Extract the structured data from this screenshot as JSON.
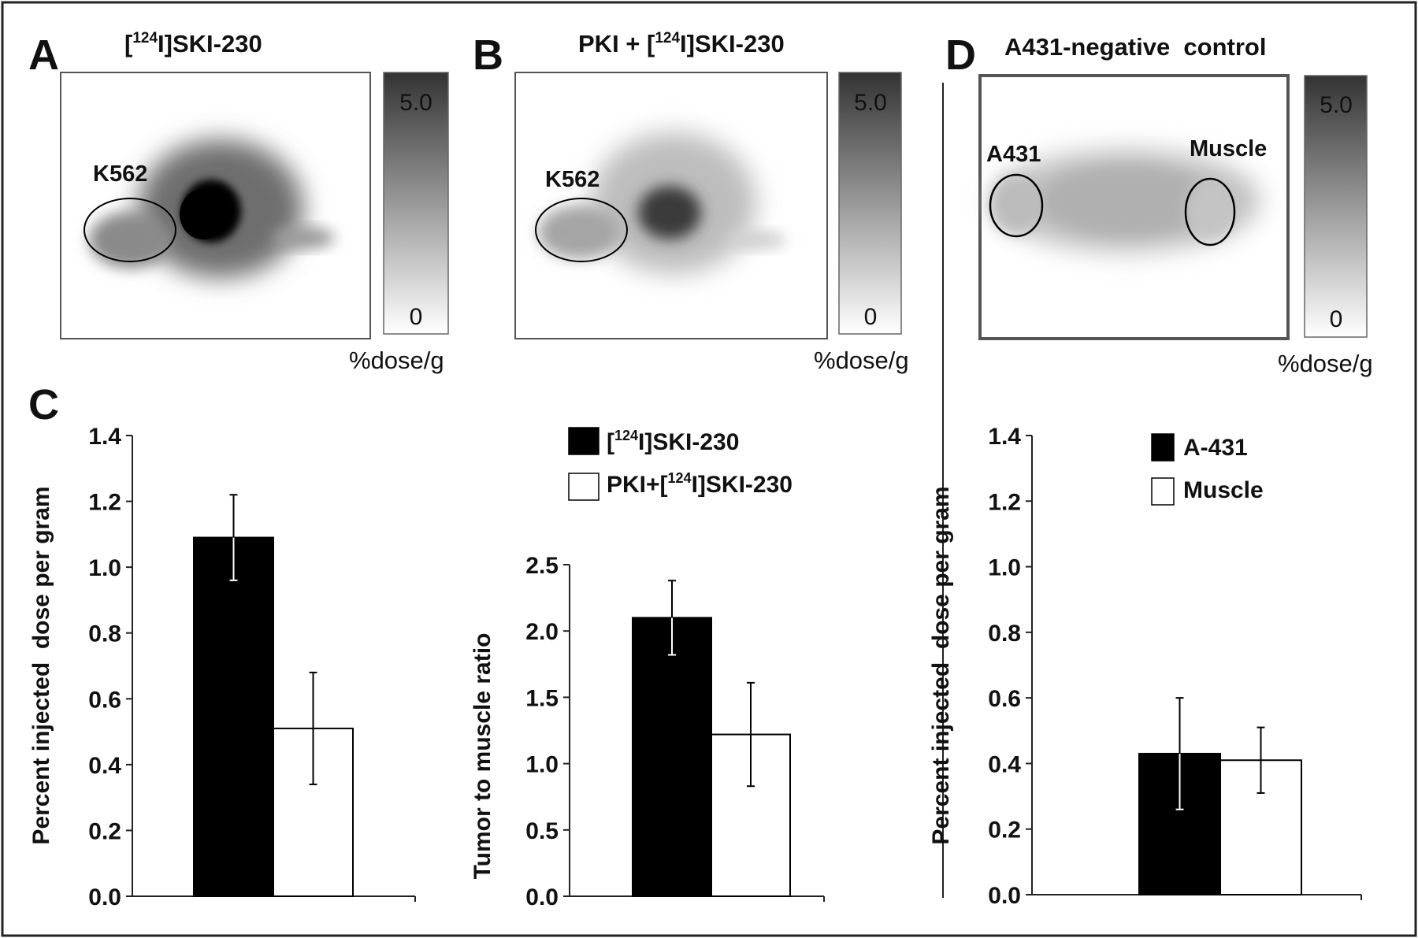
{
  "panels": {
    "a": {
      "letter": "A",
      "title_prefix": "[",
      "title_sup": "124",
      "title_suffix": "I]SKI-230",
      "roi_label": "K562",
      "scale_max": "5.0",
      "scale_min": "0",
      "scale_unit": "%dose/g"
    },
    "b": {
      "letter": "B",
      "title_prefix": "PKI + [",
      "title_sup": "124",
      "title_suffix": "I]SKI-230",
      "roi_label": "K562",
      "scale_max": "5.0",
      "scale_min": "0",
      "scale_unit": "%dose/g"
    },
    "c": {
      "letter": "C"
    },
    "d": {
      "letter": "D",
      "title": "A431-negative  control",
      "roi_left_label": "A431",
      "roi_right_label": "Muscle",
      "scale_max": "5.0",
      "scale_min": "0",
      "scale_unit": "%dose/g"
    }
  },
  "legends": {
    "c": [
      {
        "prefix": "[",
        "sup": "124",
        "suffix": "I]SKI-230",
        "color": "#000000"
      },
      {
        "prefix": "PKI+[",
        "sup": "124",
        "suffix": "I]SKI-230",
        "color": "#ffffff"
      }
    ],
    "d": [
      {
        "prefix": "A-431",
        "sup": "",
        "suffix": "",
        "color": "#000000"
      },
      {
        "prefix": "Muscle",
        "sup": "",
        "suffix": "",
        "color": "#ffffff"
      }
    ]
  },
  "chart_data": [
    {
      "id": "c1",
      "type": "bar",
      "ylabel": "Percent injected  dose per gram",
      "ylim": [
        0,
        1.4
      ],
      "yticks": [
        "0.0",
        "0.2",
        "0.4",
        "0.6",
        "0.8",
        "1.0",
        "1.2",
        "1.4"
      ],
      "grid": false,
      "series": [
        {
          "name": "[124I]SKI-230",
          "color": "#000000",
          "values": [
            1.09
          ],
          "errors": [
            0.13
          ]
        },
        {
          "name": "PKI+[124I]SKI-230",
          "color": "#ffffff",
          "values": [
            0.51
          ],
          "errors": [
            0.17
          ]
        }
      ]
    },
    {
      "id": "c2",
      "type": "bar",
      "ylabel": "Tumor to muscle ratio",
      "ylim": [
        0,
        2.5
      ],
      "yticks": [
        "0.0",
        "0.5",
        "1.0",
        "1.5",
        "2.0",
        "2.5"
      ],
      "grid": false,
      "series": [
        {
          "name": "[124I]SKI-230",
          "color": "#000000",
          "values": [
            2.1
          ],
          "errors": [
            0.28
          ]
        },
        {
          "name": "PKI+[124I]SKI-230",
          "color": "#ffffff",
          "values": [
            1.22
          ],
          "errors": [
            0.39
          ]
        }
      ]
    },
    {
      "id": "d",
      "type": "bar",
      "ylabel": "Percent injected  dose per gram",
      "ylim": [
        0,
        1.4
      ],
      "yticks": [
        "0.0",
        "0.2",
        "0.4",
        "0.6",
        "0.8",
        "1.0",
        "1.2",
        "1.4"
      ],
      "grid": false,
      "series": [
        {
          "name": "A-431",
          "color": "#000000",
          "values": [
            0.43
          ],
          "errors": [
            0.17
          ]
        },
        {
          "name": "Muscle",
          "color": "#ffffff",
          "values": [
            0.41
          ],
          "errors": [
            0.1
          ]
        }
      ]
    }
  ]
}
